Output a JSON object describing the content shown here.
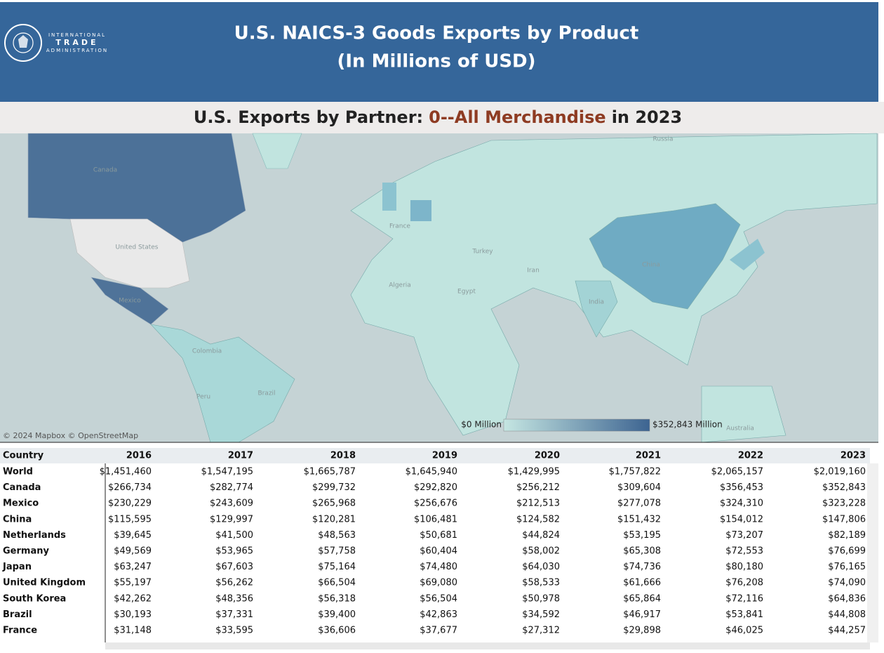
{
  "header": {
    "logo": [
      "INTERNATIONAL",
      "TRADE",
      "ADMINISTRATION"
    ],
    "title": [
      "U.S. NAICS-3 Goods Exports by Product",
      "(In Millions of USD)"
    ]
  },
  "subtitle": {
    "prefix": "U.S. Exports by Partner:",
    "product": "0--All Merchandise",
    "suffix": "in 2023"
  },
  "map": {
    "labels": [
      "Canada",
      "United States",
      "Mexico",
      "Russia",
      "China",
      "India",
      "Iran",
      "Turkey",
      "Egypt",
      "Algeria",
      "France",
      "Colombia",
      "Peru",
      "Brazil",
      "Australia"
    ],
    "attribution": "© 2024 Mapbox © OpenStreetMap",
    "legend": {
      "min": "$0 Million",
      "max": "$352,843 Million"
    }
  },
  "table": {
    "columns": [
      "Country",
      "2016",
      "2017",
      "2018",
      "2019",
      "2020",
      "2021",
      "2022",
      "2023"
    ],
    "rows": [
      [
        "World",
        "$1,451,460",
        "$1,547,195",
        "$1,665,787",
        "$1,645,940",
        "$1,429,995",
        "$1,757,822",
        "$2,065,157",
        "$2,019,160"
      ],
      [
        "Canada",
        "$266,734",
        "$282,774",
        "$299,732",
        "$292,820",
        "$256,212",
        "$309,604",
        "$356,453",
        "$352,843"
      ],
      [
        "Mexico",
        "$230,229",
        "$243,609",
        "$265,968",
        "$256,676",
        "$212,513",
        "$277,078",
        "$324,310",
        "$323,228"
      ],
      [
        "China",
        "$115,595",
        "$129,997",
        "$120,281",
        "$106,481",
        "$124,582",
        "$151,432",
        "$154,012",
        "$147,806"
      ],
      [
        "Netherlands",
        "$39,645",
        "$41,500",
        "$48,563",
        "$50,681",
        "$44,824",
        "$53,195",
        "$73,207",
        "$82,189"
      ],
      [
        "Germany",
        "$49,569",
        "$53,965",
        "$57,758",
        "$60,404",
        "$58,002",
        "$65,308",
        "$72,553",
        "$76,699"
      ],
      [
        "Japan",
        "$63,247",
        "$67,603",
        "$75,164",
        "$74,480",
        "$64,030",
        "$74,736",
        "$80,180",
        "$76,165"
      ],
      [
        "United Kingdom",
        "$55,197",
        "$56,262",
        "$66,504",
        "$69,080",
        "$58,533",
        "$61,666",
        "$76,208",
        "$74,090"
      ],
      [
        "South Korea",
        "$42,262",
        "$48,356",
        "$56,318",
        "$56,504",
        "$50,978",
        "$65,864",
        "$72,116",
        "$64,836"
      ],
      [
        "Brazil",
        "$30,193",
        "$37,331",
        "$39,400",
        "$42,863",
        "$34,592",
        "$46,917",
        "$53,841",
        "$44,808"
      ],
      [
        "France",
        "$31,148",
        "$33,595",
        "$36,606",
        "$37,677",
        "$27,312",
        "$29,898",
        "$46,025",
        "$44,257"
      ]
    ]
  }
}
